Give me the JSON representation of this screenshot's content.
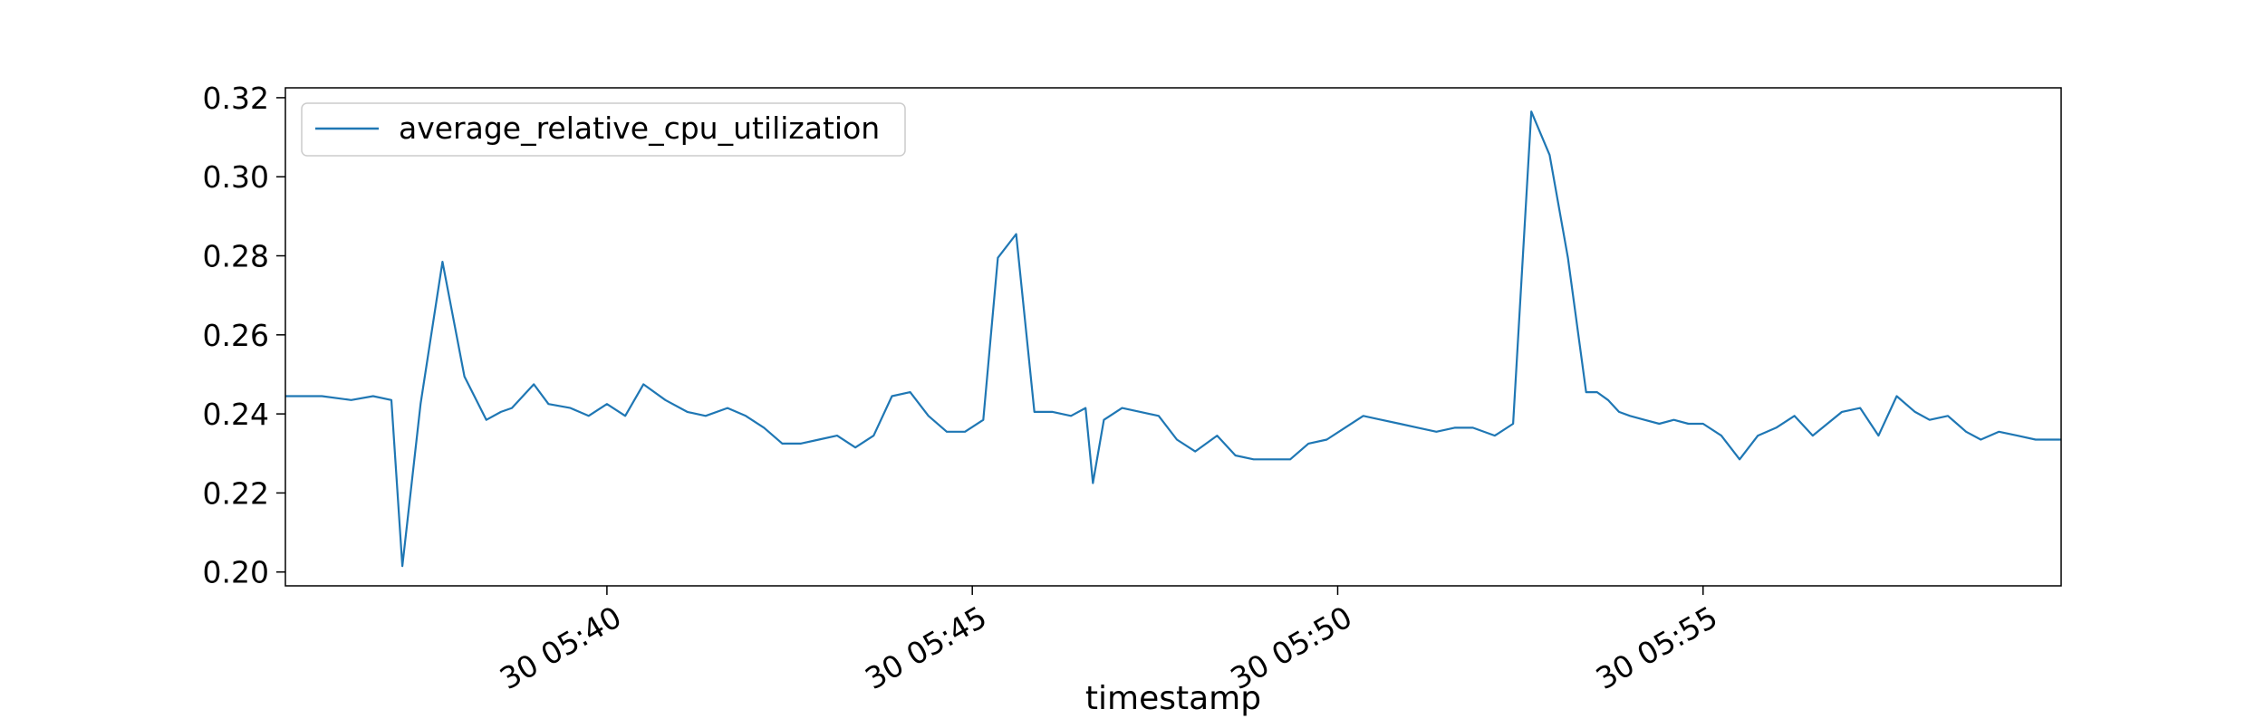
{
  "chart_data": {
    "type": "line",
    "title": "",
    "xlabel": "timestamp",
    "ylabel": "",
    "xlim": [
      0,
      24.3
    ],
    "ylim": [
      0.1965,
      0.3225
    ],
    "grid": false,
    "legend_position": "top-left",
    "yticks": [
      {
        "value": 0.2,
        "label": "0.20"
      },
      {
        "value": 0.22,
        "label": "0.22"
      },
      {
        "value": 0.24,
        "label": "0.24"
      },
      {
        "value": 0.26,
        "label": "0.26"
      },
      {
        "value": 0.28,
        "label": "0.28"
      },
      {
        "value": 0.3,
        "label": "0.30"
      },
      {
        "value": 0.32,
        "label": "0.32"
      }
    ],
    "xticks": [
      {
        "value": 4.4,
        "label": "30 05:40"
      },
      {
        "value": 9.4,
        "label": "30 05:45"
      },
      {
        "value": 14.4,
        "label": "30 05:50"
      },
      {
        "value": 19.4,
        "label": "30 05:55"
      }
    ],
    "series": [
      {
        "name": "average_relative_cpu_utilization",
        "color": "#1f77b4",
        "x": [
          0.0,
          0.5,
          0.9,
          1.2,
          1.45,
          1.6,
          1.85,
          2.15,
          2.45,
          2.75,
          2.95,
          3.1,
          3.4,
          3.6,
          3.9,
          4.15,
          4.4,
          4.65,
          4.9,
          5.2,
          5.5,
          5.75,
          6.05,
          6.3,
          6.55,
          6.8,
          7.05,
          7.3,
          7.55,
          7.8,
          8.05,
          8.3,
          8.55,
          8.8,
          9.05,
          9.3,
          9.55,
          9.75,
          10.0,
          10.25,
          10.5,
          10.75,
          10.95,
          11.05,
          11.2,
          11.45,
          11.7,
          11.95,
          12.2,
          12.45,
          12.75,
          13.0,
          13.25,
          13.5,
          13.75,
          14.0,
          14.25,
          14.5,
          14.75,
          15.0,
          15.25,
          15.5,
          15.75,
          16.0,
          16.25,
          16.55,
          16.8,
          17.05,
          17.3,
          17.55,
          17.8,
          17.95,
          18.1,
          18.25,
          18.4,
          18.6,
          18.8,
          19.0,
          19.2,
          19.4,
          19.65,
          19.9,
          20.15,
          20.4,
          20.65,
          20.9,
          21.1,
          21.3,
          21.55,
          21.8,
          22.05,
          22.3,
          22.5,
          22.75,
          23.0,
          23.2,
          23.45,
          23.7,
          23.95,
          24.3
        ],
        "values": [
          0.2445,
          0.2445,
          0.2435,
          0.2445,
          0.2435,
          0.2015,
          0.2425,
          0.2785,
          0.2495,
          0.2385,
          0.2405,
          0.2415,
          0.2475,
          0.2425,
          0.2415,
          0.2395,
          0.2425,
          0.2395,
          0.2475,
          0.2435,
          0.2405,
          0.2395,
          0.2415,
          0.2395,
          0.2365,
          0.2325,
          0.2325,
          0.2335,
          0.2345,
          0.2315,
          0.2345,
          0.2445,
          0.2455,
          0.2395,
          0.2355,
          0.2355,
          0.2385,
          0.2795,
          0.2855,
          0.2405,
          0.2405,
          0.2395,
          0.2415,
          0.2225,
          0.2385,
          0.2415,
          0.2405,
          0.2395,
          0.2335,
          0.2305,
          0.2345,
          0.2295,
          0.2285,
          0.2285,
          0.2285,
          0.2325,
          0.2335,
          0.2365,
          0.2395,
          0.2385,
          0.2375,
          0.2365,
          0.2355,
          0.2365,
          0.2365,
          0.2345,
          0.2375,
          0.3165,
          0.3055,
          0.2795,
          0.2455,
          0.2455,
          0.2435,
          0.2405,
          0.2395,
          0.2385,
          0.2375,
          0.2385,
          0.2375,
          0.2375,
          0.2345,
          0.2285,
          0.2345,
          0.2365,
          0.2395,
          0.2345,
          0.2375,
          0.2405,
          0.2415,
          0.2345,
          0.2445,
          0.2405,
          0.2385,
          0.2395,
          0.2355,
          0.2335,
          0.2355,
          0.2345,
          0.2335,
          0.2335
        ]
      }
    ]
  }
}
